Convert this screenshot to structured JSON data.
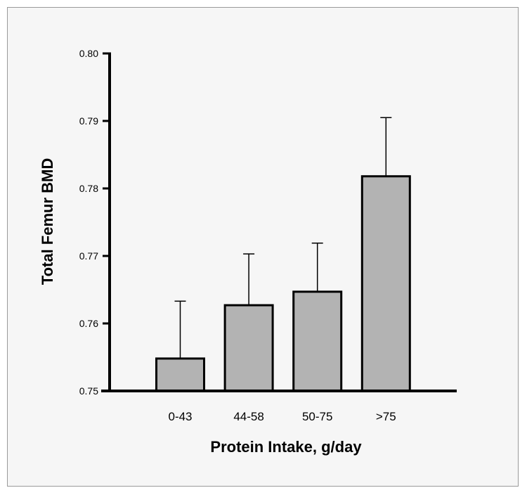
{
  "chart_data": {
    "type": "bar",
    "title": "",
    "xlabel": "Protein Intake, g/day",
    "ylabel": "Total Femur BMD",
    "categories": [
      "0-43",
      "44-58",
      "50-75",
      ">75"
    ],
    "values": [
      0.7548,
      0.7627,
      0.7647,
      0.7818
    ],
    "error_upper": [
      0.0085,
      0.0076,
      0.0072,
      0.0087
    ],
    "ylim": [
      0.75,
      0.8
    ],
    "yticks": [
      0.75,
      0.76,
      0.77,
      0.78,
      0.79,
      0.8
    ],
    "ytick_labels": [
      "0.75",
      "0.76",
      "0.77",
      "0.78",
      "0.79",
      "0.80"
    ],
    "bar_color": "#b3b3b3",
    "edge_color": "#000000",
    "grid": false
  }
}
